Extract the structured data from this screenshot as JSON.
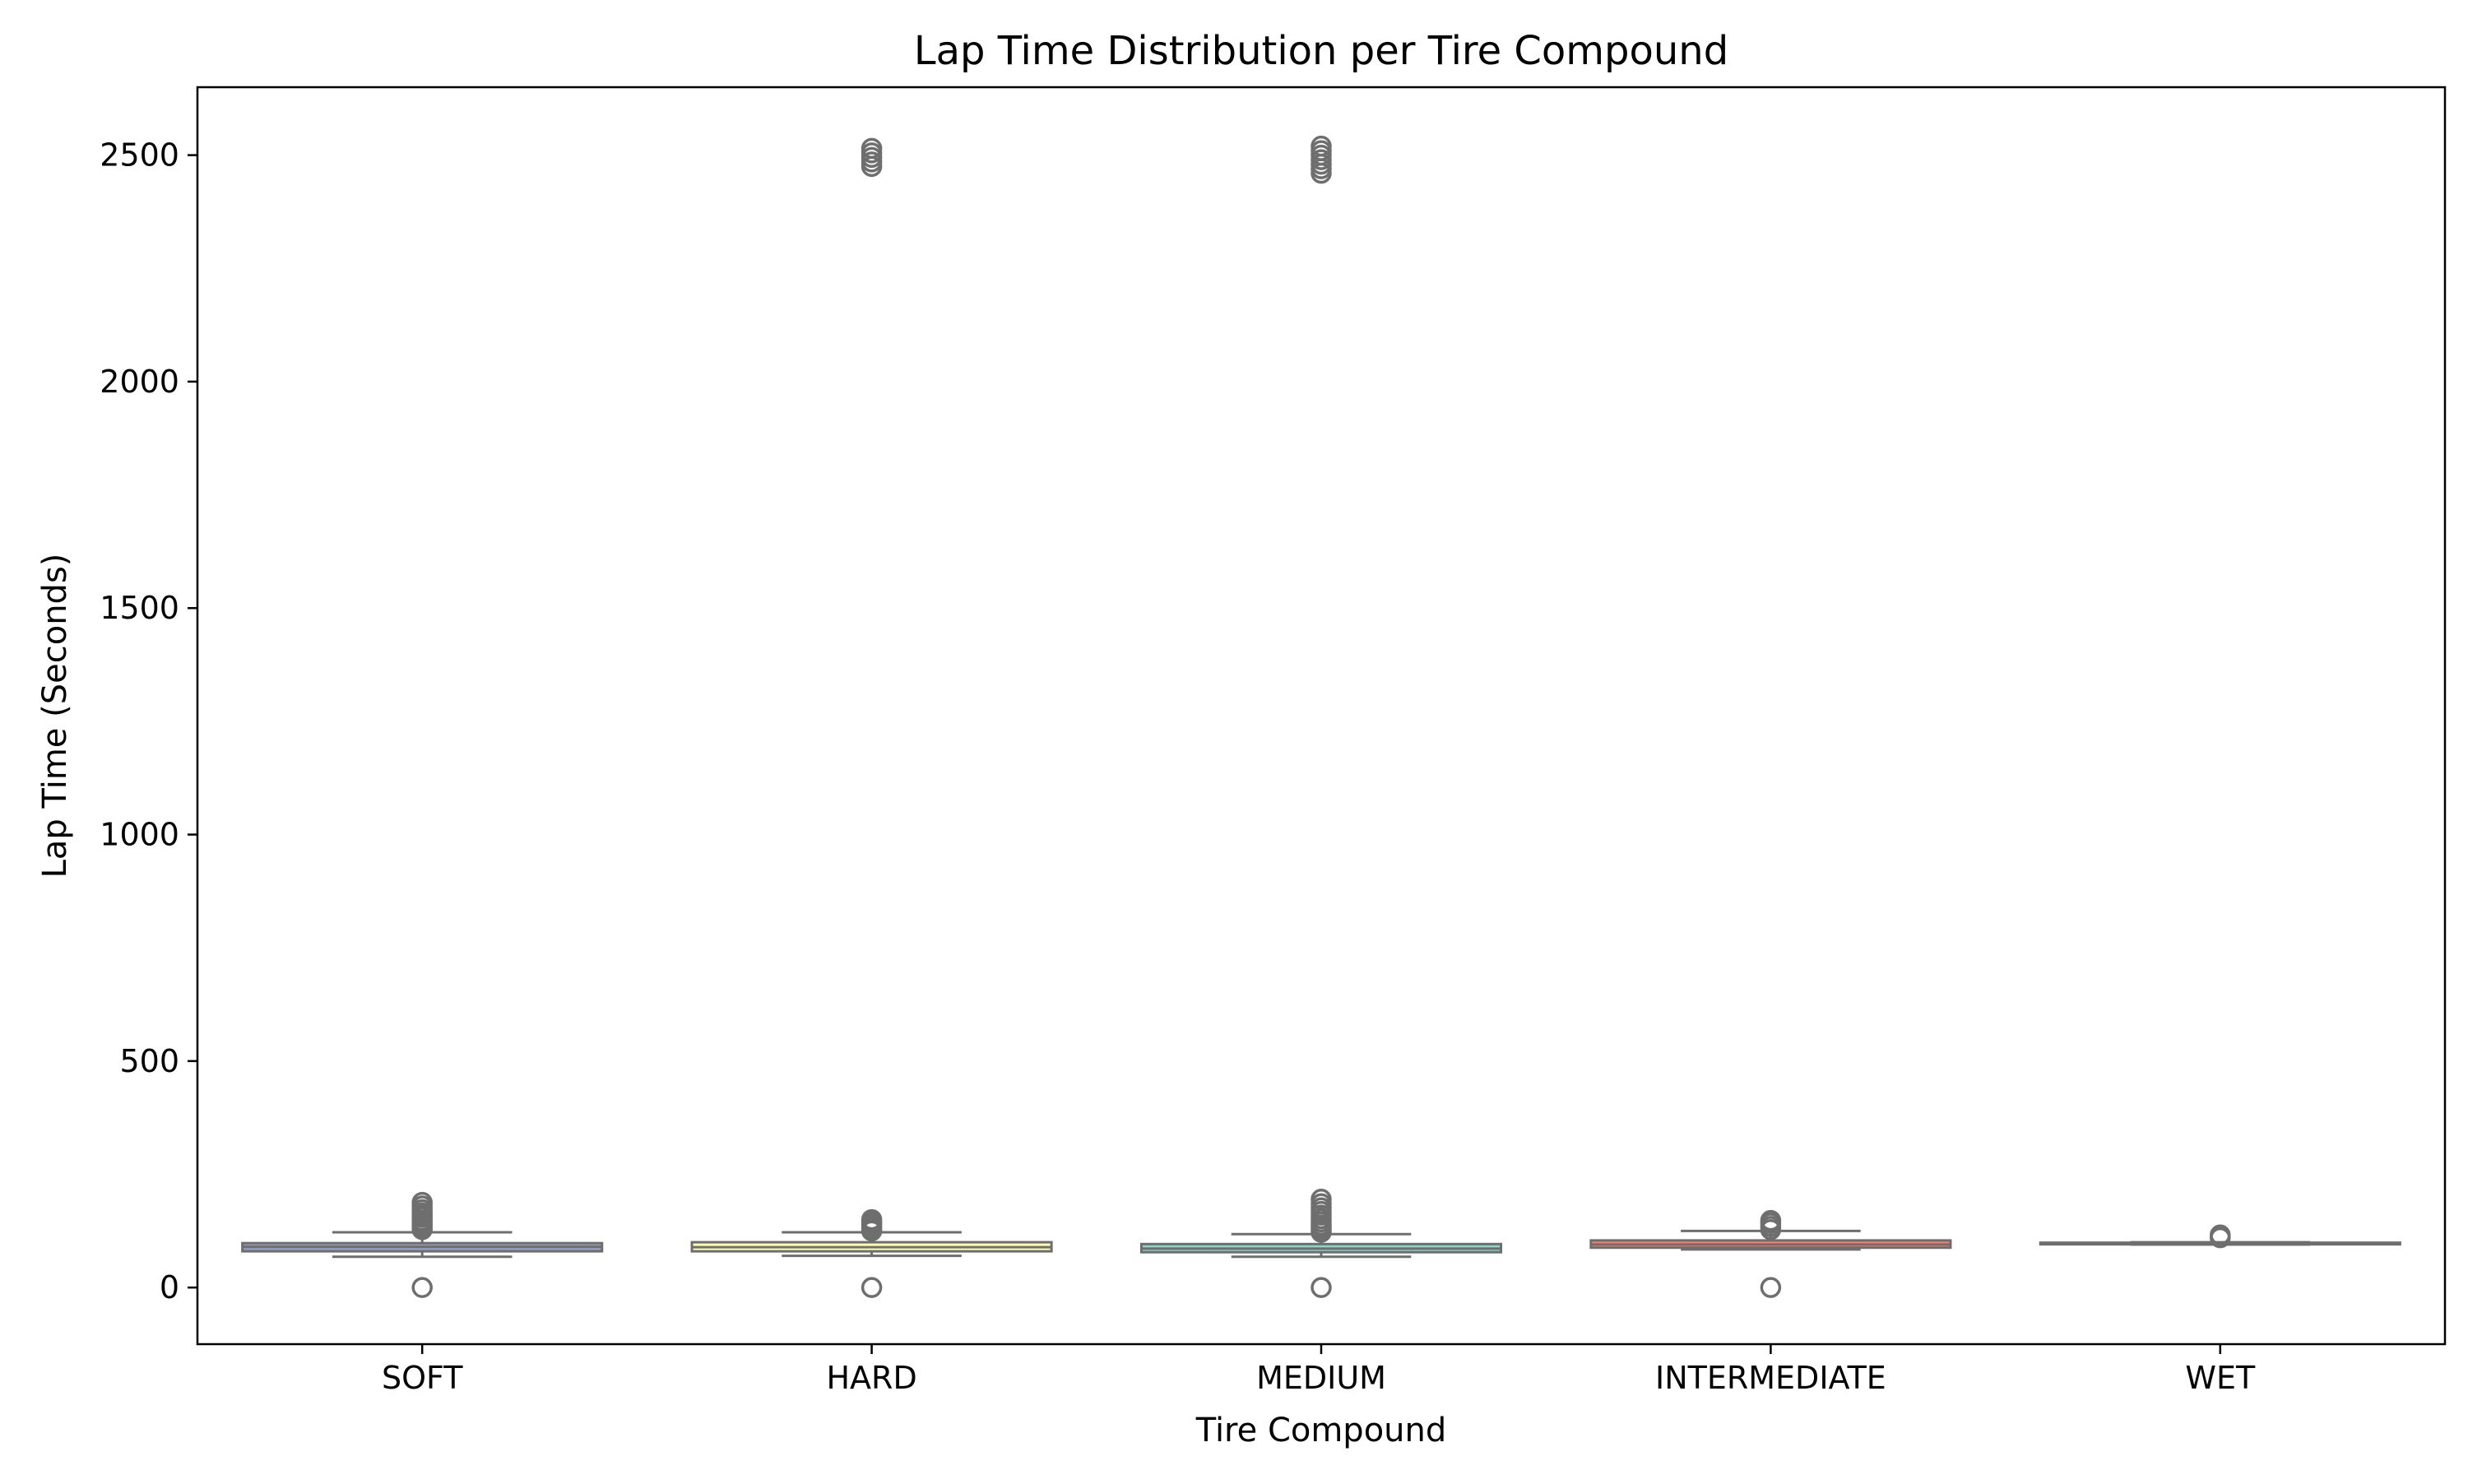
{
  "chart_data": {
    "type": "box",
    "title": "Lap Time Distribution per Tire Compound",
    "xlabel": "Tire Compound",
    "ylabel": "Lap Time (Seconds)",
    "ylim": [
      -125,
      2650
    ],
    "yticks": [
      0,
      500,
      1000,
      1500,
      2000,
      2500
    ],
    "grid": false,
    "categories": [
      "SOFT",
      "HARD",
      "MEDIUM",
      "INTERMEDIATE",
      "WET"
    ],
    "box_colors": [
      "#8da0cb",
      "#ffffb3",
      "#8dd3c7",
      "#fb8072",
      "#b3de69"
    ],
    "line_color": "#6e6e6e",
    "boxes": [
      {
        "category": "SOFT",
        "whisker_low": 68,
        "q1": 80,
        "median": 90,
        "q3": 98,
        "whisker_high": 122,
        "outliers": [
          0,
          128,
          133,
          138,
          143,
          148,
          155,
          160,
          165,
          172,
          180,
          188
        ]
      },
      {
        "category": "HARD",
        "whisker_low": 70,
        "q1": 80,
        "median": 89,
        "q3": 100,
        "whisker_high": 122,
        "outliers": [
          0,
          125,
          130,
          135,
          140,
          145,
          150,
          2475,
          2485,
          2495,
          2505,
          2515
        ]
      },
      {
        "category": "MEDIUM",
        "whisker_low": 68,
        "q1": 78,
        "median": 86,
        "q3": 96,
        "whisker_high": 118,
        "outliers": [
          0,
          122,
          127,
          132,
          138,
          145,
          152,
          160,
          168,
          176,
          185,
          195,
          2460,
          2470,
          2480,
          2490,
          2500,
          2510,
          2520
        ]
      },
      {
        "category": "INTERMEDIATE",
        "whisker_low": 84,
        "q1": 88,
        "median": 95,
        "q3": 104,
        "whisker_high": 125,
        "outliers": [
          0,
          128,
          135,
          142,
          148
        ]
      },
      {
        "category": "WET",
        "whisker_low": 95,
        "q1": 96,
        "median": 97,
        "q3": 99,
        "whisker_high": 100,
        "outliers": [
          110,
          116
        ]
      }
    ]
  }
}
